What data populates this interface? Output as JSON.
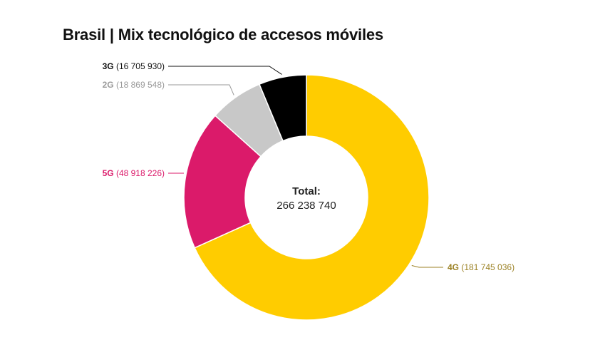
{
  "title": "Brasil | Mix tecnológico de accesos móviles",
  "center": {
    "label": "Total:",
    "value": "266 238 740"
  },
  "chart_data": {
    "type": "pie",
    "title": "Brasil | Mix tecnológico de accesos móviles",
    "total": 266238740,
    "slices": [
      {
        "name": "4G",
        "value": 181745036,
        "display": "(181 745 036)",
        "color": "#FFCC00",
        "label_color": "#9C8225"
      },
      {
        "name": "5G",
        "value": 48918226,
        "display": "(48 918 226)",
        "color": "#DB1A6A",
        "label_color": "#DB1A6A"
      },
      {
        "name": "2G",
        "value": 18869548,
        "display": "(18 869 548)",
        "color": "#C8C8C8",
        "label_color": "#9A9A9A"
      },
      {
        "name": "3G",
        "value": 16705930,
        "display": "(16 705 930)",
        "color": "#000000",
        "label_color": "#111111"
      }
    ]
  }
}
